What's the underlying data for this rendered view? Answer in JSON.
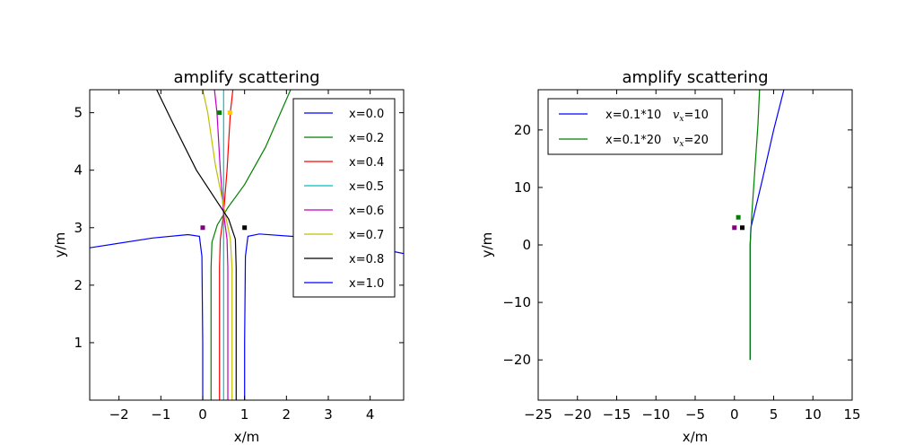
{
  "chart_data": [
    {
      "type": "line",
      "title": "amplify scattering",
      "xlabel": "x/m",
      "ylabel": "y/m",
      "xlim": [
        -2.7,
        4.8
      ],
      "ylim": [
        0.0,
        5.4
      ],
      "xticks": [
        -2,
        -1,
        0,
        1,
        2,
        3,
        4
      ],
      "yticks": [
        1,
        2,
        3,
        4,
        5
      ],
      "grid": false,
      "legend_position": "top-right",
      "series": [
        {
          "name": "x=0.0",
          "color": "#0000ff",
          "values": [
            [
              0.0,
              0.0
            ],
            [
              0.0,
              1.0
            ],
            [
              -0.02,
              2.5
            ],
            [
              -0.08,
              2.85
            ],
            [
              -0.35,
              2.88
            ],
            [
              -1.2,
              2.82
            ],
            [
              -2.7,
              2.65
            ]
          ]
        },
        {
          "name": "x=0.2",
          "color": "#008000",
          "values": [
            [
              0.2,
              0.0
            ],
            [
              0.2,
              2.3
            ],
            [
              0.22,
              2.75
            ],
            [
              0.35,
              3.05
            ],
            [
              0.6,
              3.35
            ],
            [
              1.0,
              3.75
            ],
            [
              1.5,
              4.4
            ],
            [
              2.1,
              5.4
            ]
          ]
        },
        {
          "name": "x=0.4",
          "color": "#ff0000",
          "values": [
            [
              0.4,
              0.0
            ],
            [
              0.4,
              2.3
            ],
            [
              0.42,
              2.8
            ],
            [
              0.5,
              3.25
            ],
            [
              0.58,
              4.0
            ],
            [
              0.66,
              5.0
            ],
            [
              0.72,
              5.4
            ]
          ]
        },
        {
          "name": "x=0.5",
          "color": "#00bfbf",
          "values": [
            [
              0.5,
              0.0
            ],
            [
              0.5,
              2.4
            ],
            [
              0.5,
              3.3
            ],
            [
              0.5,
              5.4
            ]
          ]
        },
        {
          "name": "x=0.6",
          "color": "#bf00bf",
          "values": [
            [
              0.6,
              0.0
            ],
            [
              0.6,
              2.3
            ],
            [
              0.58,
              2.8
            ],
            [
              0.5,
              3.25
            ],
            [
              0.42,
              4.0
            ],
            [
              0.34,
              5.0
            ],
            [
              0.28,
              5.4
            ]
          ]
        },
        {
          "name": "x=0.7",
          "color": "#bfbf00",
          "values": [
            [
              0.7,
              0.0
            ],
            [
              0.7,
              2.3
            ],
            [
              0.66,
              2.8
            ],
            [
              0.52,
              3.3
            ],
            [
              0.3,
              4.1
            ],
            [
              0.12,
              5.0
            ],
            [
              0.0,
              5.4
            ]
          ]
        },
        {
          "name": "x=0.8",
          "color": "#000000",
          "values": [
            [
              0.8,
              0.0
            ],
            [
              0.8,
              2.3
            ],
            [
              0.78,
              2.8
            ],
            [
              0.62,
              3.15
            ],
            [
              0.3,
              3.5
            ],
            [
              -0.15,
              4.0
            ],
            [
              -0.7,
              4.8
            ],
            [
              -1.1,
              5.4
            ]
          ]
        },
        {
          "name": "x=1.0",
          "color": "#0000ff",
          "values": [
            [
              1.0,
              0.0
            ],
            [
              1.0,
              1.0
            ],
            [
              1.02,
              2.5
            ],
            [
              1.08,
              2.85
            ],
            [
              1.35,
              2.89
            ],
            [
              2.3,
              2.84
            ],
            [
              3.5,
              2.74
            ],
            [
              4.8,
              2.55
            ]
          ]
        }
      ],
      "markers": [
        {
          "x": 0.4,
          "y": 5.0,
          "color": "#008000"
        },
        {
          "x": 0.65,
          "y": 5.0,
          "color": "#ffcc00"
        },
        {
          "x": 0.0,
          "y": 3.0,
          "color": "#800080"
        },
        {
          "x": 1.0,
          "y": 3.0,
          "color": "#000000"
        }
      ]
    },
    {
      "type": "line",
      "title": "amplify scattering",
      "xlabel": "x/m",
      "ylabel": "y/m",
      "xlim": [
        -25,
        15
      ],
      "ylim": [
        -27,
        27
      ],
      "xticks": [
        -25,
        -20,
        -15,
        -10,
        -5,
        0,
        5,
        10,
        15
      ],
      "yticks": [
        -20,
        -10,
        0,
        10,
        20
      ],
      "grid": false,
      "legend_position": "top-left",
      "series": [
        {
          "name": "x=0.1*10",
          "math": "v_x=10",
          "color": "#0000ff",
          "values": [
            [
              2.0,
              -20.0
            ],
            [
              2.0,
              0.0
            ],
            [
              2.1,
              3.0
            ],
            [
              3.5,
              11.0
            ],
            [
              5.0,
              20.0
            ],
            [
              6.3,
              27.0
            ]
          ]
        },
        {
          "name": "x=0.1*20",
          "math": "v_x=20",
          "color": "#008000",
          "values": [
            [
              2.0,
              -20.0
            ],
            [
              2.0,
              0.0
            ],
            [
              2.2,
              5.0
            ],
            [
              2.6,
              13.0
            ],
            [
              3.0,
              21.0
            ],
            [
              3.2,
              27.0
            ]
          ]
        }
      ],
      "markers": [
        {
          "x": 0.5,
          "y": 4.8,
          "color": "#008000"
        },
        {
          "x": 0.0,
          "y": 3.0,
          "color": "#800080"
        },
        {
          "x": 1.0,
          "y": 3.0,
          "color": "#000000"
        }
      ]
    }
  ]
}
